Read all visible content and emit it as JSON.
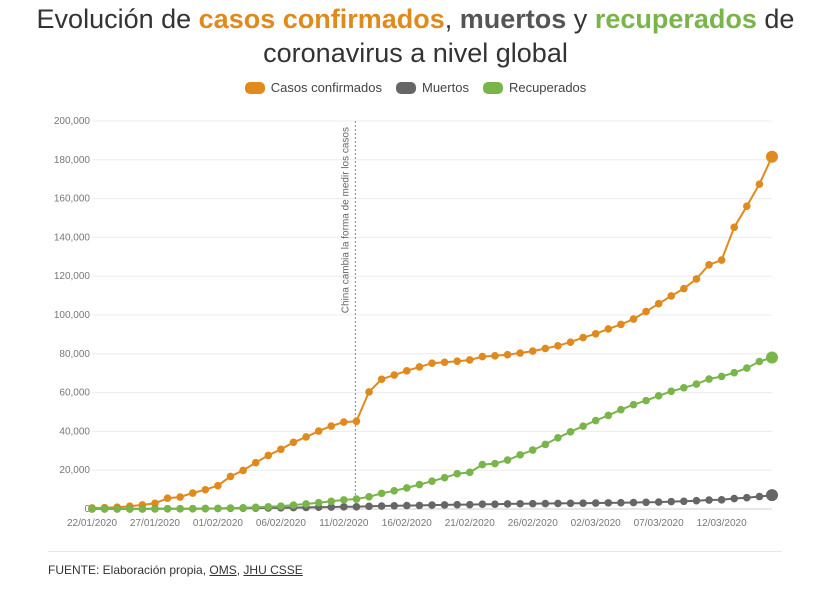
{
  "title": {
    "line1_part1": "Evolución de ",
    "line1_part2": "casos confirmados",
    "line1_part3": ", ",
    "line1_part4": "muertos",
    "line1_part5": " y ",
    "line1_part6": "recuperados",
    "line1_part7": " de",
    "line2": "coronavirus a nivel global"
  },
  "colors": {
    "confirmados": "#e08a1e",
    "muertos": "#666666",
    "recuperados": "#79b54a"
  },
  "legend": {
    "confirmados": "Casos confirmados",
    "muertos": "Muertos",
    "recuperados": "Recuperados"
  },
  "source": {
    "prefix": "FUENTE: Elaboración propia, ",
    "link1": "OMS",
    "sep": ", ",
    "link2": "JHU CSSE"
  },
  "chart_data": {
    "type": "line",
    "title": "Evolución de casos confirmados, muertos y recuperados de coronavirus a nivel global",
    "xlabel": "",
    "ylabel": "",
    "ylim": [
      0,
      200000
    ],
    "yticks": [
      "0",
      "20,000",
      "40,000",
      "60,000",
      "80,000",
      "100,000",
      "120,000",
      "140,000",
      "160,000",
      "180,000",
      "200,000"
    ],
    "ytick_values": [
      0,
      20000,
      40000,
      60000,
      80000,
      100000,
      120000,
      140000,
      160000,
      180000,
      200000
    ],
    "x_start": "22/01/2020",
    "xtick_labels": [
      "22/01/2020",
      "27/01/2020",
      "01/02/2020",
      "06/02/2020",
      "11/02/2020",
      "16/02/2020",
      "21/02/2020",
      "26/02/2020",
      "02/03/2020",
      "07/03/2020",
      "12/03/2020"
    ],
    "xtick_index": [
      0,
      5,
      10,
      15,
      20,
      25,
      30,
      35,
      40,
      45,
      50
    ],
    "grid": true,
    "legend_position": "top",
    "annotation": {
      "text": "China cambia la forma de medir los casos",
      "index": 21
    },
    "series": [
      {
        "name": "Casos confirmados",
        "color": "#e08a1e",
        "values": [
          555,
          654,
          941,
          1434,
          2118,
          2927,
          5578,
          6166,
          8234,
          9927,
          12038,
          16787,
          19881,
          23892,
          27635,
          30794,
          34391,
          37120,
          40150,
          42762,
          44802,
          45221,
          60368,
          66885,
          69030,
          71224,
          73258,
          75136,
          75639,
          76197,
          76819,
          78572,
          78958,
          79561,
          80406,
          81388,
          82746,
          84112,
          86011,
          88369,
          90306,
          92840,
          95120,
          97886,
          101801,
          105847,
          109821,
          113590,
          118620,
          125875,
          128343,
          145193,
          156097,
          167449,
          181546
        ]
      },
      {
        "name": "Muertos",
        "color": "#666666",
        "values": [
          17,
          18,
          26,
          42,
          56,
          82,
          131,
          133,
          171,
          213,
          259,
          362,
          426,
          492,
          564,
          634,
          719,
          806,
          906,
          1013,
          1113,
          1118,
          1371,
          1523,
          1666,
          1770,
          1868,
          2007,
          2122,
          2247,
          2251,
          2458,
          2469,
          2629,
          2708,
          2770,
          2814,
          2872,
          2941,
          2996,
          3085,
          3160,
          3254,
          3348,
          3460,
          3558,
          3802,
          3988,
          4262,
          4615,
          4720,
          5404,
          5819,
          6440,
          7126
        ]
      },
      {
        "name": "Recuperados",
        "color": "#79b54a",
        "values": [
          28,
          30,
          36,
          39,
          52,
          61,
          107,
          126,
          143,
          222,
          284,
          472,
          623,
          852,
          1124,
          1487,
          2011,
          2616,
          3244,
          3946,
          4683,
          5150,
          6295,
          8058,
          9395,
          10865,
          12583,
          14352,
          16121,
          18177,
          18890,
          22886,
          23394,
          25227,
          27905,
          30384,
          33277,
          36711,
          39782,
          42716,
          45602,
          48228,
          51170,
          53796,
          55865,
          58358,
          60694,
          62494,
          64404,
          67003,
          68324,
          70251,
          72624,
          76034,
          78088
        ]
      }
    ]
  }
}
